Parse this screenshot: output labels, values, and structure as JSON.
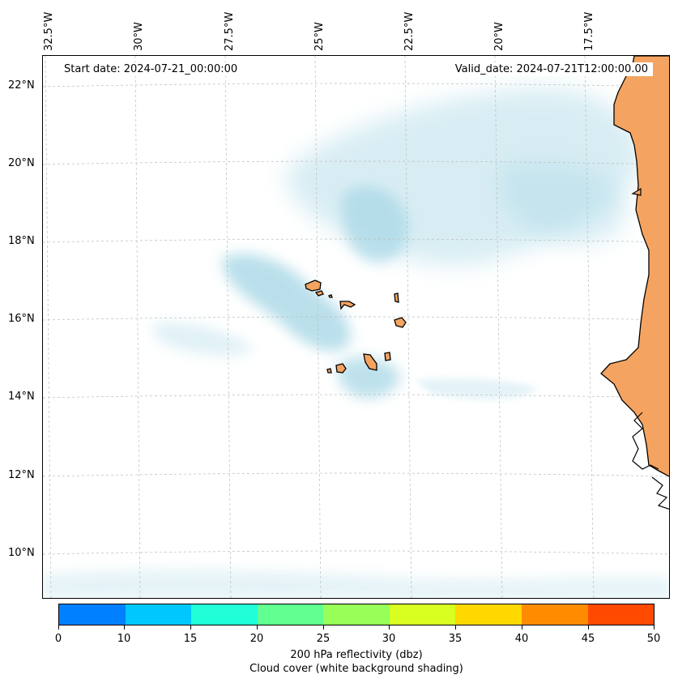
{
  "map": {
    "start_date": "Start date: 2024-07-21_00:00:00",
    "valid_date": "Valid_date: 2024-07-21T12:00:00.00",
    "longitude_labels": [
      "32.5°W",
      "30°W",
      "27.5°W",
      "25°W",
      "22.5°W",
      "20°W",
      "17.5°W"
    ],
    "latitude_labels": [
      "22°N",
      "20°N",
      "18°N",
      "16°N",
      "14°N",
      "12°N",
      "10°N"
    ],
    "colors": {
      "cloud": "#a9d8e6",
      "land": "#f4a460",
      "coastline": "#000000",
      "gridline": "#bbbbbb"
    }
  },
  "colorbar": {
    "ticks": [
      "0",
      "10",
      "15",
      "20",
      "25",
      "30",
      "35",
      "40",
      "45",
      "50"
    ],
    "colors": [
      "#0080ff",
      "#00c8ff",
      "#20ffd8",
      "#60ff90",
      "#98ff58",
      "#d8ff20",
      "#ffd800",
      "#ff8c00",
      "#ff4a00"
    ],
    "label": "200 hPa reflectivity (dbz)",
    "sublabel": "Cloud cover (white background shading)"
  }
}
